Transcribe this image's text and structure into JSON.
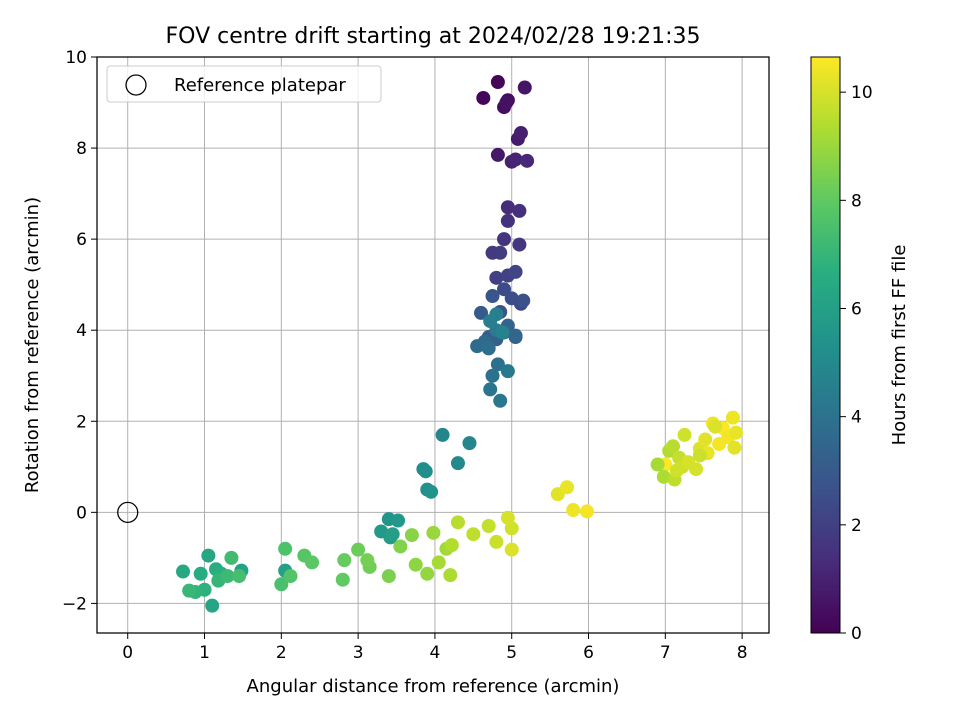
{
  "chart_data": {
    "type": "scatter",
    "title": "FOV centre drift starting at 2024/02/28 19:21:35",
    "xlabel": "Angular distance from reference (arcmin)",
    "ylabel": "Rotation from reference (arcmin)",
    "xlim": [
      -0.4,
      8.35
    ],
    "ylim": [
      -2.65,
      10.0
    ],
    "xticks": [
      0,
      1,
      2,
      3,
      4,
      5,
      6,
      7,
      8
    ],
    "yticks": [
      -2,
      0,
      2,
      4,
      6,
      8,
      10
    ],
    "grid": true,
    "legend": {
      "placement": "top-left",
      "entries": [
        "Reference platepar"
      ]
    },
    "reference_point": {
      "x": 0,
      "y": 0
    },
    "colorbar": {
      "label": "Hours from first FF file",
      "range": [
        0,
        10.65
      ],
      "ticks": [
        0,
        2,
        4,
        6,
        8,
        10
      ],
      "colormap": "viridis"
    },
    "series": [
      {
        "hours": [
          0.1,
          0.2,
          0.3,
          0.4,
          0.5,
          0.6,
          0.7,
          0.8,
          0.9,
          1.0,
          1.1,
          1.2,
          1.3,
          1.4,
          1.5,
          1.6,
          1.7,
          1.8,
          1.9,
          2.0,
          2.1,
          2.2,
          2.3,
          2.4,
          2.5,
          2.6,
          2.7,
          2.8,
          2.9,
          3.0,
          3.1,
          3.2,
          3.3,
          3.4,
          3.5,
          3.6,
          3.7,
          3.8,
          3.9,
          4.0,
          4.1,
          4.2,
          4.3,
          4.4,
          4.5,
          4.6,
          4.7
        ],
        "x": [
          4.82,
          4.63,
          4.95,
          4.9,
          4.93,
          5.17,
          4.82,
          5.08,
          5.12,
          5.0,
          5.05,
          5.2,
          4.95,
          5.1,
          4.95,
          4.9,
          5.1,
          4.75,
          4.85,
          4.8,
          4.95,
          5.05,
          5.12,
          4.9,
          5.0,
          5.15,
          4.85,
          4.75,
          5.05,
          4.6,
          4.7,
          4.8,
          4.9,
          4.95,
          5.05,
          4.65,
          4.55,
          4.7,
          4.82,
          4.75,
          4.72,
          4.85,
          4.95,
          4.8,
          4.72,
          4.8,
          4.88
        ],
        "y": [
          9.45,
          9.1,
          9.05,
          8.9,
          9.0,
          9.33,
          7.85,
          8.2,
          8.33,
          7.7,
          7.75,
          7.72,
          6.7,
          6.62,
          6.4,
          6.0,
          5.88,
          5.7,
          5.7,
          5.15,
          5.2,
          5.28,
          4.58,
          4.9,
          4.7,
          4.65,
          4.4,
          4.75,
          3.85,
          4.38,
          3.85,
          3.8,
          3.95,
          4.1,
          3.88,
          3.75,
          3.65,
          3.6,
          3.25,
          3.0,
          2.7,
          2.45,
          3.1,
          4.0,
          4.2,
          4.35,
          3.95
        ]
      },
      {
        "hours": [
          4.8,
          4.9,
          5.0,
          5.1,
          5.2,
          5.3,
          5.4,
          5.5,
          5.6,
          5.7,
          5.8,
          5.9,
          6.0,
          6.1,
          6.2,
          6.3,
          6.4,
          6.5,
          6.6,
          6.7,
          6.8,
          6.9,
          7.0,
          7.1,
          7.2
        ],
        "x": [
          4.1,
          4.45,
          4.3,
          3.88,
          3.85,
          3.9,
          3.95,
          3.4,
          3.52,
          3.3,
          3.42,
          3.45,
          2.05,
          1.48,
          1.1,
          1.05,
          0.72,
          0.95,
          1.15,
          1.22,
          1.0,
          0.88,
          1.18,
          0.8,
          1.3
        ],
        "y": [
          1.7,
          1.52,
          1.08,
          0.9,
          0.95,
          0.5,
          0.45,
          -0.15,
          -0.18,
          -0.42,
          -0.55,
          -0.48,
          -1.28,
          -1.28,
          -2.05,
          -0.95,
          -1.3,
          -1.35,
          -1.25,
          -1.35,
          -1.7,
          -1.75,
          -1.5,
          -1.72,
          -1.4
        ]
      },
      {
        "hours": [
          7.3,
          7.4,
          7.5,
          7.6,
          7.7,
          7.8,
          7.9,
          8.0,
          8.1,
          8.2,
          8.3,
          8.4,
          8.5,
          8.6,
          8.7,
          8.8,
          8.9,
          9.0,
          9.1,
          9.2,
          9.3,
          9.4,
          9.5,
          9.6,
          9.7,
          9.8,
          9.9,
          10.0,
          10.1,
          10.2,
          10.3,
          10.4,
          10.5,
          10.6
        ],
        "x": [
          1.35,
          1.45,
          2.0,
          2.05,
          2.12,
          2.3,
          2.4,
          2.8,
          2.82,
          3.0,
          3.15,
          3.12,
          3.4,
          3.55,
          3.7,
          3.75,
          3.9,
          3.98,
          4.15,
          4.05,
          4.2,
          4.22,
          4.3,
          4.5,
          4.7,
          4.8,
          5.0,
          4.95,
          5.0,
          5.6,
          5.72,
          5.8,
          5.98,
          7.0
        ],
        "y": [
          -1.0,
          -1.4,
          -1.58,
          -0.8,
          -1.4,
          -0.95,
          -1.1,
          -1.48,
          -1.05,
          -0.82,
          -1.2,
          -1.05,
          -1.4,
          -0.75,
          -0.5,
          -1.15,
          -1.35,
          -0.45,
          -0.8,
          -1.1,
          -1.38,
          -0.72,
          -0.22,
          -0.48,
          -0.3,
          -0.65,
          -0.35,
          -0.12,
          -0.82,
          0.4,
          0.55,
          0.05,
          0.02,
          1.05
        ]
      },
      {
        "hours": [
          9.2,
          9.3,
          9.4,
          9.5,
          9.6,
          9.7,
          9.8,
          9.9,
          10.0,
          10.1,
          10.2,
          10.3,
          10.4,
          10.5,
          10.6,
          10.5,
          10.4,
          10.3,
          10.2,
          10.1,
          10.0,
          9.9,
          9.8
        ],
        "x": [
          6.9,
          6.98,
          7.05,
          7.1,
          7.12,
          7.18,
          7.22,
          7.25,
          7.4,
          7.45,
          7.52,
          7.55,
          7.62,
          7.7,
          7.75,
          7.82,
          7.88,
          7.92,
          7.9,
          7.65,
          7.3,
          7.15,
          7.45
        ],
        "y": [
          1.05,
          0.78,
          1.35,
          1.45,
          0.72,
          1.2,
          1.0,
          1.7,
          0.95,
          1.4,
          1.6,
          1.3,
          1.95,
          1.5,
          1.85,
          1.65,
          2.08,
          1.75,
          1.42,
          1.88,
          1.1,
          0.92,
          1.25
        ]
      }
    ]
  }
}
